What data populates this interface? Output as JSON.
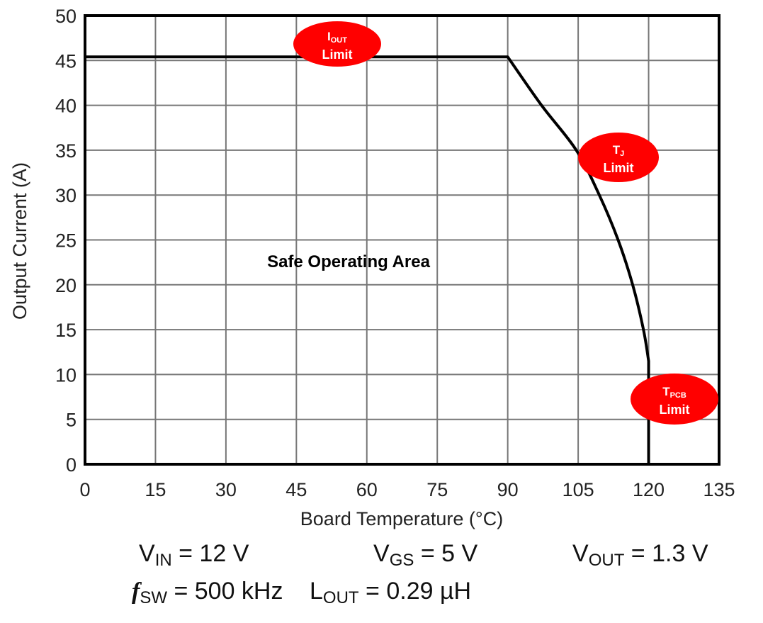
{
  "chart_data": {
    "type": "line",
    "title": "",
    "xlabel": "Board Temperature (°C)",
    "ylabel": "Output Current (A)",
    "xlim": [
      0,
      135
    ],
    "ylim": [
      0,
      50
    ],
    "xticks": [
      0,
      15,
      30,
      45,
      60,
      75,
      90,
      105,
      120,
      135
    ],
    "yticks": [
      0,
      5,
      10,
      15,
      20,
      25,
      30,
      35,
      40,
      45,
      50
    ],
    "grid": true,
    "legend": "none",
    "series": [
      {
        "color": "#000000",
        "x": [
          0,
          90,
          97.2,
          104.6,
          109.5,
          113.5,
          116.6,
          118.9,
          120,
          120
        ],
        "y": [
          45.4,
          45.4,
          40,
          35,
          30,
          25,
          20,
          15,
          11.5,
          0
        ]
      }
    ],
    "annotations": [
      {
        "main": "I",
        "sub": "OUT",
        "line2": "Limit"
      },
      {
        "main": "T",
        "sub": "J",
        "line2": "Limit"
      },
      {
        "main": "T",
        "sub": "PCB",
        "line2": "Limit"
      }
    ],
    "annotation_color": "#ff0000",
    "region_label": "Safe Operating Area"
  },
  "conditions": {
    "vin": {
      "sym": "V",
      "sub": "IN",
      "val": " = 12 V"
    },
    "vgs": {
      "sym": "V",
      "sub": "GS",
      "val": " = 5 V"
    },
    "vout": {
      "sym": "V",
      "sub": "OUT",
      "val": " = 1.3 V"
    },
    "fsw": {
      "sym": "f",
      "sub": "SW",
      "val": " = 500 kHz"
    },
    "lout": {
      "sym": "L",
      "sub": "OUT",
      "val": " = 0.29 µH"
    }
  }
}
